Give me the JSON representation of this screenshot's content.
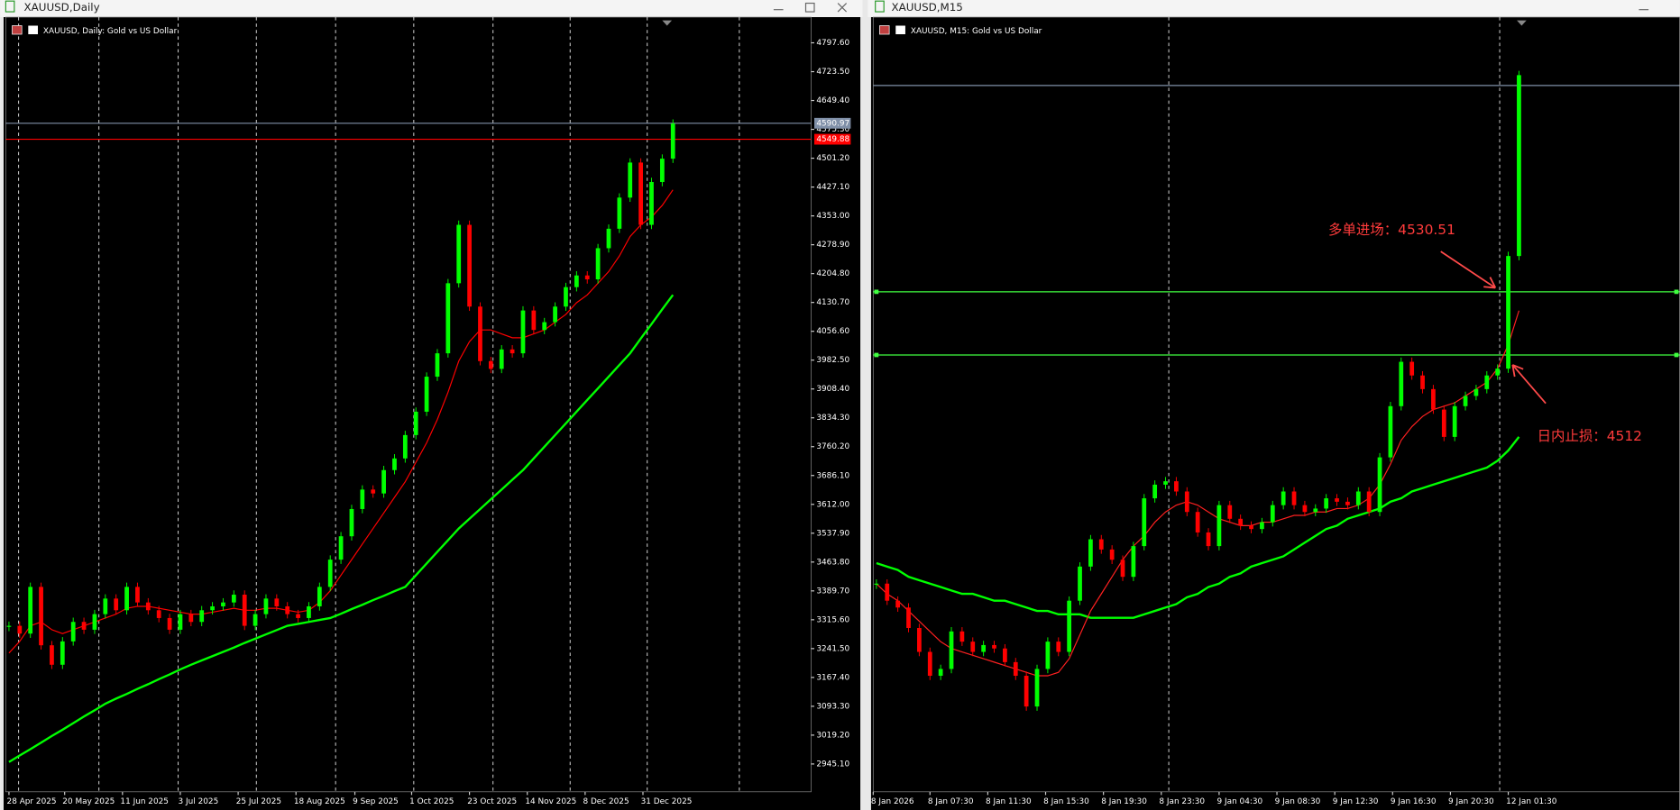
{
  "windows": [
    {
      "title": "XAUUSD,Daily"
    },
    {
      "title": "XAUUSD,M15"
    }
  ],
  "chart_data": [
    {
      "type": "candlestick",
      "subtitle": "XAUUSD, Daily:  Gold vs US Dollar",
      "up_color": "#00ff00",
      "down_color": "#ff0000",
      "ylim": [
        2873.6,
        4863.6
      ],
      "yticks": [
        {
          "value": 4797.6,
          "label": "4797.60"
        },
        {
          "value": 4723.5,
          "label": "4723.50"
        },
        {
          "value": 4649.4,
          "label": "4649.40"
        },
        {
          "value": 4575.3,
          "label": "4575.30"
        },
        {
          "value": 4501.2,
          "label": "4501.20"
        },
        {
          "value": 4427.1,
          "label": "4427.10"
        },
        {
          "value": 4353,
          "label": "4353.00"
        },
        {
          "value": 4278.9,
          "label": "4278.90"
        },
        {
          "value": 4204.8,
          "label": "4204.80"
        },
        {
          "value": 4130.7,
          "label": "4130.70"
        },
        {
          "value": 4056.6,
          "label": "4056.60"
        },
        {
          "value": 3982.5,
          "label": "3982.50"
        },
        {
          "value": 3908.4,
          "label": "3908.40"
        },
        {
          "value": 3834.3,
          "label": "3834.30"
        },
        {
          "value": 3760.2,
          "label": "3760.20"
        },
        {
          "value": 3686.1,
          "label": "3686.10"
        },
        {
          "value": 3612,
          "label": "3612.00"
        },
        {
          "value": 3537.9,
          "label": "3537.90"
        },
        {
          "value": 3463.8,
          "label": "3463.80"
        },
        {
          "value": 3389.7,
          "label": "3389.70"
        },
        {
          "value": 3315.6,
          "label": "3315.60"
        },
        {
          "value": 3241.5,
          "label": "3241.50"
        },
        {
          "value": 3167.4,
          "label": "3167.40"
        },
        {
          "value": 3093.3,
          "label": "3093.30"
        },
        {
          "value": 3019.2,
          "label": "3019.20"
        },
        {
          "value": 2945.1,
          "label": "2945.10"
        }
      ],
      "x_labels": [
        "28 Apr 2025",
        "20 May 2025",
        "11 Jun 2025",
        "3 Jul 2025",
        "25 Jul 2025",
        "18 Aug 2025",
        "9 Sep 2025",
        "1 Oct 2025",
        "23 Oct 2025",
        "14 Nov 2025",
        "8 Dec 2025",
        "31 Dec 2025"
      ],
      "values": [
        3300,
        3280,
        3400,
        3250,
        3200,
        3260,
        3310,
        3290,
        3330,
        3370,
        3340,
        3400,
        3360,
        3340,
        3320,
        3290,
        3330,
        3310,
        3340,
        3350,
        3360,
        3380,
        3300,
        3330,
        3370,
        3350,
        3330,
        3320,
        3350,
        3400,
        3470,
        3530,
        3600,
        3650,
        3640,
        3700,
        3730,
        3790,
        3850,
        3940,
        4000,
        4180,
        4330,
        4120,
        3980,
        3960,
        4010,
        4000,
        4110,
        4060,
        4080,
        4120,
        4170,
        4200,
        4190,
        4270,
        4320,
        4400,
        4490,
        4330,
        4440,
        4500,
        4590
      ],
      "ma_fast": {
        "color": "#ff0000",
        "values": [
          3230,
          3260,
          3300,
          3310,
          3290,
          3280,
          3290,
          3300,
          3310,
          3320,
          3330,
          3345,
          3350,
          3350,
          3345,
          3340,
          3335,
          3330,
          3330,
          3335,
          3340,
          3345,
          3340,
          3340,
          3345,
          3345,
          3340,
          3335,
          3340,
          3360,
          3390,
          3430,
          3470,
          3510,
          3550,
          3590,
          3630,
          3670,
          3720,
          3770,
          3830,
          3900,
          3980,
          4030,
          4060,
          4060,
          4050,
          4040,
          4040,
          4050,
          4060,
          4080,
          4100,
          4130,
          4150,
          4180,
          4210,
          4250,
          4300,
          4330,
          4350,
          4380,
          4420
        ]
      },
      "ma_slow": {
        "color": "#00ff00",
        "values": [
          2950,
          2967,
          2983,
          3000,
          3017,
          3033,
          3050,
          3067,
          3083,
          3100,
          3113,
          3125,
          3138,
          3150,
          3163,
          3175,
          3188,
          3200,
          3211,
          3222,
          3233,
          3244,
          3256,
          3267,
          3278,
          3289,
          3300,
          3305,
          3310,
          3315,
          3320,
          3331,
          3343,
          3354,
          3366,
          3377,
          3389,
          3400,
          3430,
          3460,
          3490,
          3520,
          3550,
          3575,
          3600,
          3625,
          3650,
          3675,
          3700,
          3730,
          3760,
          3790,
          3820,
          3850,
          3880,
          3910,
          3940,
          3970,
          4000,
          4038,
          4075,
          4113,
          4150
        ]
      },
      "levels": [
        {
          "value": 4590.97,
          "color": "#8090a8"
        },
        {
          "value": 4549.88,
          "color": "#ff0000"
        }
      ]
    },
    {
      "type": "candlestick",
      "subtitle": "XAUUSD, M15:  Gold vs US Dollar",
      "up_color": "#00ff00",
      "down_color": "#ff0000",
      "ylim": [
        4384,
        4611
      ],
      "x_labels": [
        "8 Jan 2026",
        "8 Jan 07:30",
        "8 Jan 11:30",
        "8 Jan 15:30",
        "8 Jan 19:30",
        "8 Jan 23:30",
        "9 Jan 04:30",
        "9 Jan 08:30",
        "9 Jan 12:30",
        "9 Jan 16:30",
        "9 Jan 20:30",
        "12 Jan 01:30"
      ],
      "values": [
        4445,
        4440,
        4438,
        4432,
        4425,
        4418,
        4420,
        4431,
        4428,
        4425,
        4427,
        4426,
        4422,
        4418,
        4409,
        4420,
        4428,
        4425,
        4440,
        4450,
        4458,
        4455,
        4452,
        4447,
        4456,
        4470,
        4474,
        4475,
        4472,
        4466,
        4460,
        4456,
        4468,
        4464,
        4462,
        4461,
        4463,
        4468,
        4472,
        4468,
        4466,
        4467,
        4470,
        4469,
        4468,
        4472,
        4466,
        4482,
        4497,
        4510,
        4506,
        4502,
        4496,
        4488,
        4497,
        4500,
        4502,
        4506,
        4508,
        4541,
        4594
      ],
      "ma_fast": {
        "color": "#ff2020",
        "values": [
          4445,
          4442,
          4440,
          4437,
          4434,
          4431,
          4428,
          4426,
          4425,
          4424,
          4423,
          4422,
          4421,
          4420,
          4419,
          4418,
          4418,
          4419,
          4423,
          4430,
          4437,
          4442,
          4447,
          4452,
          4456,
          4459,
          4463,
          4466,
          4468,
          4469,
          4468,
          4466,
          4464,
          4463,
          4462,
          4462,
          4463,
          4463,
          4464,
          4465,
          4465,
          4466,
          4466,
          4467,
          4467,
          4468,
          4470,
          4474,
          4480,
          4487,
          4491,
          4494,
          4496,
          4497,
          4498,
          4500,
          4502,
          4504,
          4508,
          4515,
          4525
        ]
      },
      "ma_slow": {
        "color": "#00ff00",
        "values": [
          4451,
          4450,
          4449,
          4447,
          4446,
          4445,
          4444,
          4443,
          4442,
          4442,
          4441,
          4440,
          4440,
          4439,
          4438,
          4437,
          4437,
          4436,
          4436,
          4436,
          4435,
          4435,
          4435,
          4435,
          4435,
          4436,
          4437,
          4438,
          4439,
          4441,
          4442,
          4444,
          4445,
          4447,
          4448,
          4450,
          4451,
          4452,
          4453,
          4455,
          4457,
          4459,
          4461,
          4462,
          4464,
          4465,
          4466,
          4467,
          4469,
          4470,
          4472,
          4473,
          4474,
          4475,
          4476,
          4477,
          4478,
          4479,
          4481,
          4484,
          4488
        ]
      },
      "levels": [
        {
          "value": 4590.97,
          "color": "#8090a8"
        },
        {
          "value": 4530.51,
          "color": "#40ff40"
        },
        {
          "value": 4512,
          "color": "#40ff40"
        }
      ],
      "annotations": [
        {
          "text": "多单进场：4530.51",
          "color": "#ff3b3b"
        },
        {
          "text": "日内止损：4512",
          "color": "#ff3b3b"
        }
      ]
    }
  ]
}
